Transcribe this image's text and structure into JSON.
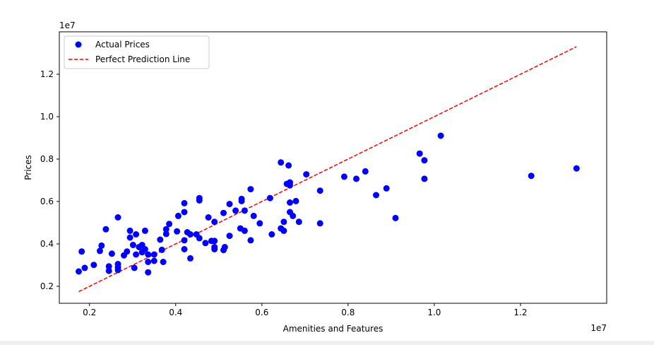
{
  "chart_data": {
    "type": "scatter",
    "xlabel": "Amenities and Features",
    "ylabel": "Prices",
    "x_scale_label": "1e7",
    "y_scale_label": "1e7",
    "xlim": [
      1.3,
      14.0
    ],
    "ylim": [
      1.2,
      14.0
    ],
    "x_ticks": [
      2,
      4,
      6,
      8,
      10,
      12
    ],
    "x_tick_labels": [
      "0.2",
      "0.4",
      "0.6",
      "0.8",
      "1.0",
      "1.2"
    ],
    "y_ticks": [
      2,
      4,
      6,
      8,
      10,
      12
    ],
    "y_tick_labels": [
      "0.2",
      "0.4",
      "0.6",
      "0.8",
      "1.0",
      "1.2"
    ],
    "grid": false,
    "legend": {
      "position": "top-left",
      "entries": [
        {
          "label": "Actual Prices",
          "color": "#0000ff",
          "marker": "circle"
        },
        {
          "label": "Perfect Prediction Line",
          "color": "#ff0000",
          "style": "dashed"
        }
      ]
    },
    "series": [
      {
        "name": "Actual Prices",
        "color": "#0000ff",
        "points": [
          [
            1.75,
            2.7
          ],
          [
            1.82,
            3.64
          ],
          [
            1.89,
            2.87
          ],
          [
            2.1,
            3.01
          ],
          [
            2.24,
            3.67
          ],
          [
            2.28,
            3.92
          ],
          [
            2.38,
            4.69
          ],
          [
            2.45,
            2.73
          ],
          [
            2.45,
            2.94
          ],
          [
            2.52,
            3.54
          ],
          [
            2.66,
            2.77
          ],
          [
            2.66,
            2.9
          ],
          [
            2.66,
            3.05
          ],
          [
            2.66,
            5.25
          ],
          [
            2.8,
            3.46
          ],
          [
            2.87,
            3.64
          ],
          [
            2.94,
            4.3
          ],
          [
            2.94,
            4.62
          ],
          [
            3.01,
            3.95
          ],
          [
            3.04,
            2.87
          ],
          [
            3.08,
            3.5
          ],
          [
            3.08,
            4.45
          ],
          [
            3.15,
            3.85
          ],
          [
            3.22,
            3.61
          ],
          [
            3.22,
            3.95
          ],
          [
            3.29,
            3.75
          ],
          [
            3.29,
            4.62
          ],
          [
            3.36,
            2.66
          ],
          [
            3.36,
            3.15
          ],
          [
            3.36,
            3.5
          ],
          [
            3.5,
            3.2
          ],
          [
            3.5,
            3.5
          ],
          [
            3.64,
            4.2
          ],
          [
            3.68,
            3.72
          ],
          [
            3.71,
            3.15
          ],
          [
            3.78,
            4.47
          ],
          [
            3.78,
            4.69
          ],
          [
            3.85,
            4.94
          ],
          [
            4.03,
            4.59
          ],
          [
            4.06,
            5.32
          ],
          [
            4.2,
            3.75
          ],
          [
            4.2,
            4.17
          ],
          [
            4.2,
            5.5
          ],
          [
            4.2,
            5.92
          ],
          [
            4.27,
            4.55
          ],
          [
            4.34,
            3.32
          ],
          [
            4.34,
            4.45
          ],
          [
            4.48,
            4.45
          ],
          [
            4.55,
            4.27
          ],
          [
            4.55,
            6.05
          ],
          [
            4.55,
            6.16
          ],
          [
            4.69,
            4.04
          ],
          [
            4.76,
            5.25
          ],
          [
            4.83,
            4.14
          ],
          [
            4.9,
            3.75
          ],
          [
            4.9,
            3.85
          ],
          [
            4.9,
            4.14
          ],
          [
            4.9,
            5.04
          ],
          [
            5.11,
            3.71
          ],
          [
            5.11,
            5.46
          ],
          [
            5.14,
            3.85
          ],
          [
            5.25,
            4.38
          ],
          [
            5.25,
            5.88
          ],
          [
            5.39,
            5.57
          ],
          [
            5.5,
            4.73
          ],
          [
            5.53,
            6.02
          ],
          [
            5.53,
            6.12
          ],
          [
            5.6,
            4.62
          ],
          [
            5.6,
            5.57
          ],
          [
            5.74,
            4.17
          ],
          [
            5.74,
            6.58
          ],
          [
            5.81,
            5.32
          ],
          [
            5.95,
            4.97
          ],
          [
            6.19,
            6.16
          ],
          [
            6.23,
            4.45
          ],
          [
            6.44,
            4.73
          ],
          [
            6.44,
            7.84
          ],
          [
            6.51,
            4.62
          ],
          [
            6.51,
            5.04
          ],
          [
            6.58,
            6.83
          ],
          [
            6.62,
            7.7
          ],
          [
            6.65,
            5.5
          ],
          [
            6.65,
            5.95
          ],
          [
            6.65,
            6.76
          ],
          [
            6.65,
            6.9
          ],
          [
            6.72,
            5.32
          ],
          [
            6.79,
            6.02
          ],
          [
            6.86,
            5.04
          ],
          [
            7.03,
            7.28
          ],
          [
            7.35,
            4.97
          ],
          [
            7.35,
            6.51
          ],
          [
            7.91,
            7.17
          ],
          [
            8.19,
            7.07
          ],
          [
            8.4,
            7.42
          ],
          [
            8.65,
            6.3
          ],
          [
            8.89,
            6.62
          ],
          [
            9.1,
            5.22
          ],
          [
            9.66,
            8.26
          ],
          [
            9.77,
            7.94
          ],
          [
            9.77,
            7.07
          ],
          [
            10.15,
            9.1
          ],
          [
            12.25,
            7.21
          ],
          [
            13.3,
            7.56
          ]
        ]
      },
      {
        "name": "Perfect Prediction Line",
        "color": "#ff0000",
        "style": "dashed",
        "points": [
          [
            1.75,
            1.75
          ],
          [
            13.3,
            13.3
          ]
        ]
      }
    ]
  }
}
